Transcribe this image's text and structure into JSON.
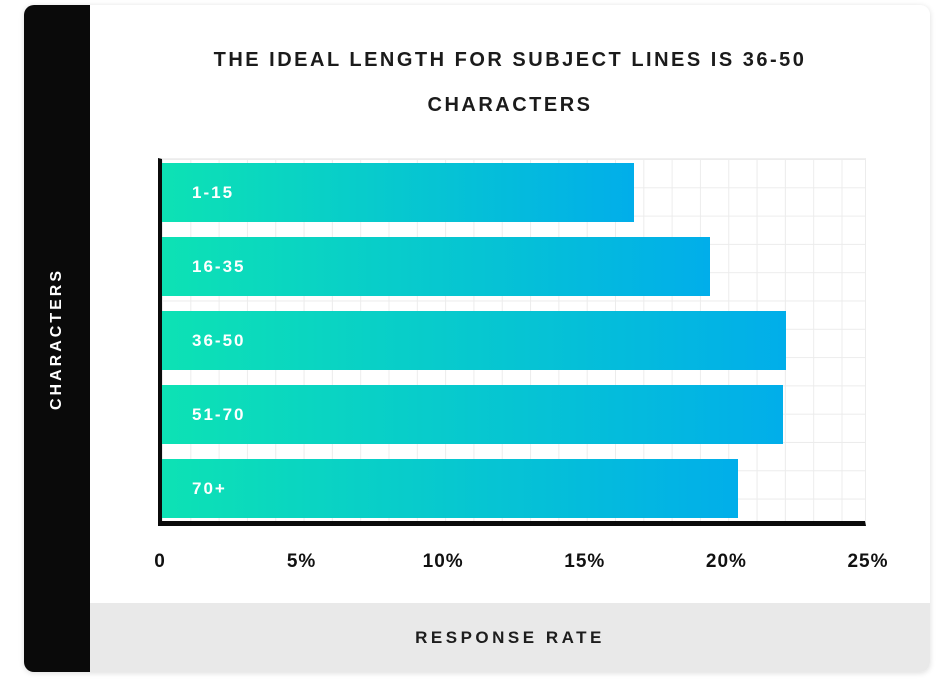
{
  "chart_data": {
    "type": "bar",
    "orientation": "horizontal",
    "title": "THE IDEAL LENGTH FOR SUBJECT LINES IS 36-50 CHARACTERS",
    "categories": [
      "1-15",
      "16-35",
      "36-50",
      "51-70",
      "70+"
    ],
    "values": [
      16.8,
      19.5,
      22.2,
      22.1,
      20.5
    ],
    "unit": "%",
    "xlabel": "RESPONSE RATE",
    "ylabel": "CHARACTERS",
    "xlim": [
      0,
      25
    ],
    "x_ticks": [
      "0",
      "5%",
      "10%",
      "15%",
      "20%",
      "25%"
    ],
    "grid": true,
    "legend": "none",
    "bar_gradient_start": "#0DE2B4",
    "bar_gradient_end": "#01AEEA"
  },
  "colors": {
    "sidebar_bg": "#0A0A0A",
    "footer_bg": "#E9E9E9",
    "grid_line": "#ECECEC",
    "axis": "#0B0B0B",
    "title_text": "#1B1B1B",
    "tick_text": "#111111",
    "bar_label_text": "#FFFFFF"
  }
}
